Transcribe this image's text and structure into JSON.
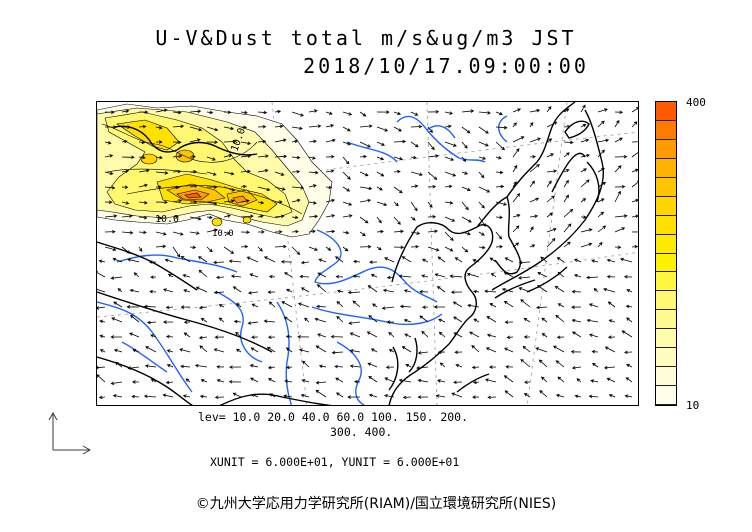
{
  "header": {
    "title": "U-V&Dust total m/s&ug/m3 JST",
    "datetime": "2018/10/17.09:00:00"
  },
  "colorbar": {
    "max_label": "400",
    "min_label": "10",
    "colors": [
      "#ff5a00",
      "#ff7a00",
      "#ff9a00",
      "#ffb300",
      "#ffc400",
      "#ffd400",
      "#ffe100",
      "#ffeb00",
      "#fff200",
      "#fff640",
      "#fff870",
      "#fffa90",
      "#fffbaa",
      "#fffcc0",
      "#fffdd5",
      "#fffee8"
    ]
  },
  "levels": {
    "line1": "lev= 10.0 20.0 40.0 60.0 100. 150. 200.",
    "line2": "300. 400."
  },
  "units": "XUNIT = 6.000E+01, YUNIT = 6.000E+01",
  "credit": "©九州大学応用力学研究所(RIAM)/国立環境研究所(NIES)",
  "contour_labels": [
    "10.0",
    "10.0",
    "10.0"
  ],
  "palette": {
    "coast": "#000000",
    "river": "#1e64ff",
    "grid": "#9a9a9a"
  }
}
